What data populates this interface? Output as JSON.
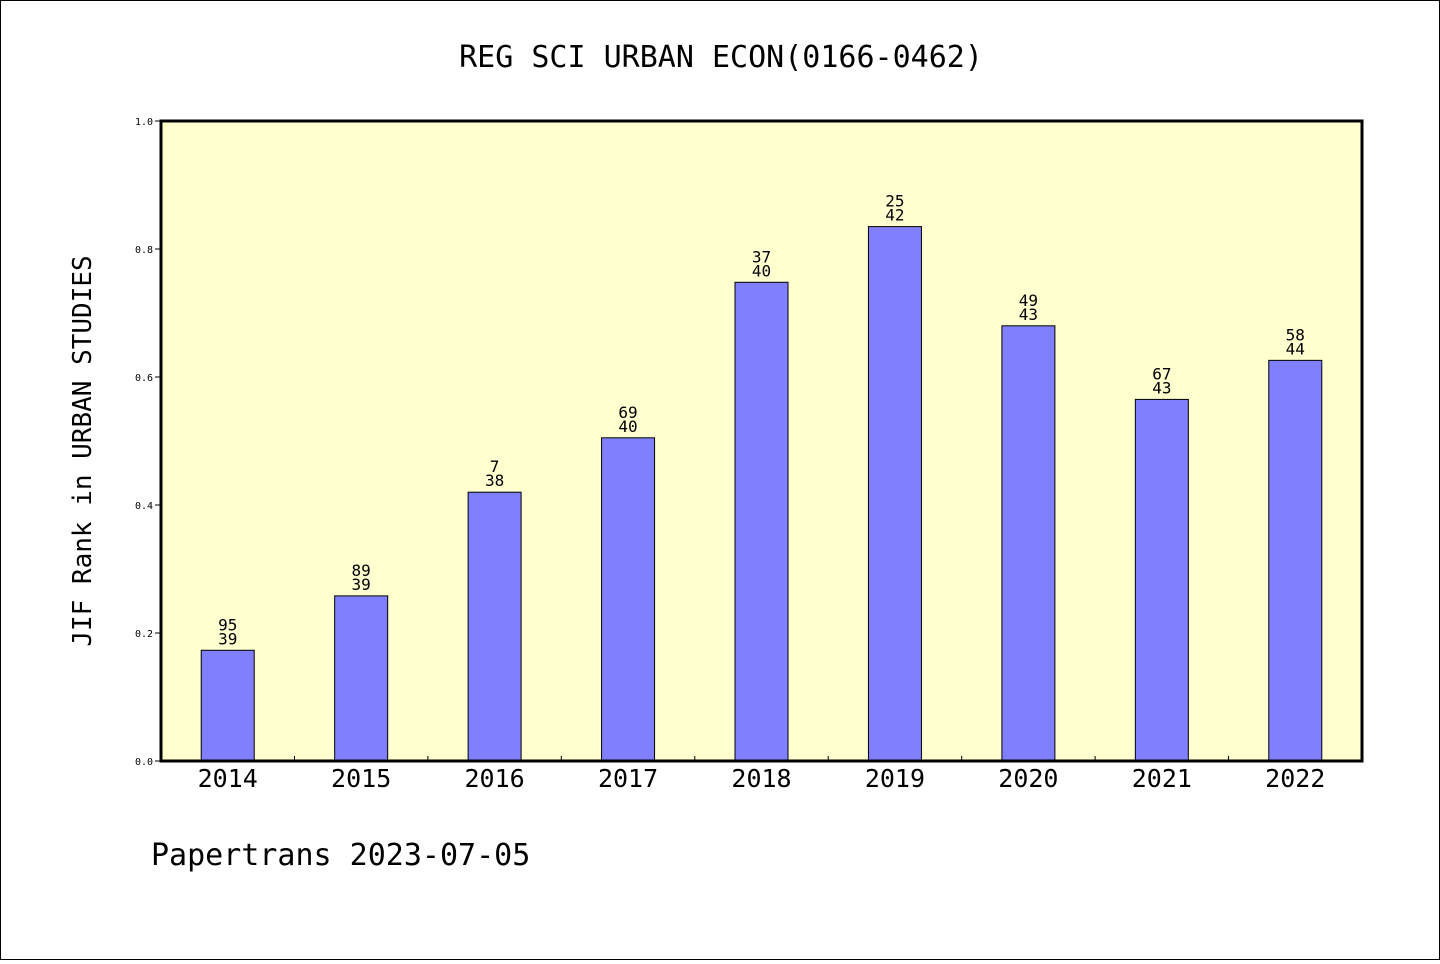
{
  "chart_data": {
    "type": "bar",
    "title": "REG SCI URBAN ECON(0166-0462)",
    "ylabel": "JIF Rank in URBAN STUDIES",
    "xlabel": "",
    "ylim": [
      0,
      1.0
    ],
    "yticks": [
      "0.0",
      "0.2",
      "0.4",
      "0.6",
      "0.8",
      "1.0"
    ],
    "categories": [
      "2014",
      "2015",
      "2016",
      "2017",
      "2018",
      "2019",
      "2020",
      "2021",
      "2022"
    ],
    "values": [
      0.173,
      0.258,
      0.42,
      0.505,
      0.748,
      0.835,
      0.68,
      0.565,
      0.626
    ],
    "labels_top": [
      "95",
      "89",
      "7",
      "69",
      "37",
      "25",
      "49",
      "67",
      "58"
    ],
    "labels_bottom": [
      "39",
      "39",
      "38",
      "40",
      "40",
      "42",
      "43",
      "43",
      "44"
    ],
    "bar_color": "#8080ff",
    "plot_background": "#ffffd0",
    "grid": false,
    "legend": false
  },
  "footer": {
    "text": "Papertrans 2023-07-05"
  }
}
